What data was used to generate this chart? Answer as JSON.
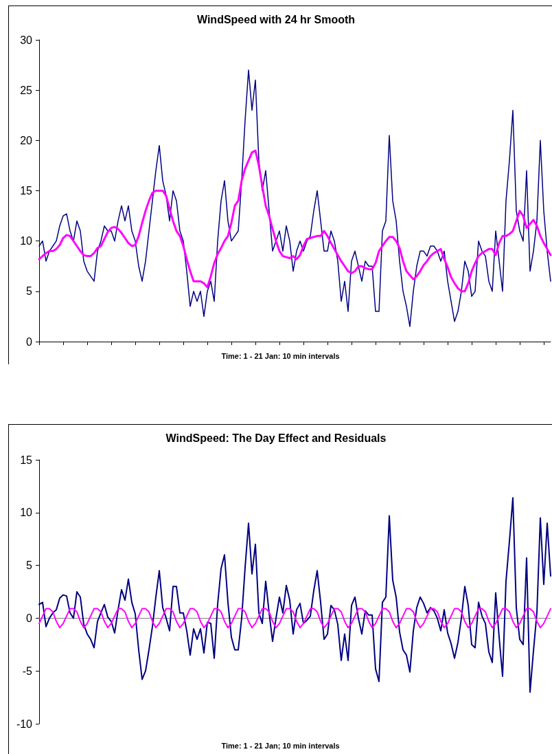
{
  "chart_data": [
    {
      "type": "line",
      "title": "WindSpeed with 24 hr Smooth",
      "xlabel": "Time: 1 - 21 Jan: 10 min intervals",
      "tick_labels": "y",
      "categories": [
        null,
        null,
        null,
        null,
        null,
        null,
        null,
        null,
        null,
        null,
        null,
        null,
        null,
        null,
        null,
        null,
        null,
        null,
        null,
        null,
        null,
        null,
        null,
        null,
        null,
        null,
        null,
        null,
        null,
        null,
        null,
        null,
        null,
        null,
        null,
        null,
        null,
        null,
        null,
        null,
        null,
        null,
        null,
        null,
        null,
        null,
        null,
        null,
        null,
        null,
        null,
        null,
        null,
        null,
        null,
        null,
        null,
        null,
        null,
        null,
        null,
        null,
        null,
        null,
        null,
        null,
        null,
        null,
        null,
        null,
        null,
        null,
        null,
        null,
        null,
        null,
        null,
        null,
        null,
        null,
        null,
        null,
        null,
        null,
        null,
        null,
        null,
        null,
        null,
        null,
        null,
        null,
        null,
        null,
        null,
        null,
        null,
        null,
        null,
        null,
        null,
        null,
        null,
        null,
        null,
        null,
        null,
        null,
        null,
        null,
        null,
        null,
        null,
        null,
        null,
        null,
        null,
        null,
        null,
        null,
        null,
        null,
        null,
        null,
        null,
        null,
        null,
        null,
        null,
        null,
        null,
        null,
        null,
        null,
        null,
        null,
        null,
        null,
        null,
        null,
        null,
        null,
        null,
        null,
        null,
        null,
        null,
        null,
        null,
        null
      ],
      "ylim": [
        0,
        30
      ],
      "yticks": [
        0,
        5,
        10,
        15,
        20,
        25,
        30
      ],
      "series": [
        {
          "color": "#000080",
          "values": [
            9.5,
            10,
            8,
            9,
            9.5,
            10,
            11.5,
            12.5,
            12.7,
            11,
            10,
            12,
            11,
            8,
            7,
            6.5,
            6,
            9,
            10,
            11.5,
            11,
            11,
            10,
            12,
            13.5,
            12,
            13.5,
            11,
            10,
            7.5,
            6,
            8,
            11,
            14,
            17,
            19.5,
            16,
            14.5,
            12,
            15,
            14,
            11,
            10,
            7,
            3.5,
            5,
            4,
            5,
            2.5,
            5,
            6,
            4,
            10,
            14,
            16,
            12,
            10,
            10.5,
            11,
            16,
            22,
            27,
            23,
            26,
            18,
            15,
            17,
            13,
            9,
            10,
            11,
            9,
            11.5,
            10,
            7,
            9,
            10,
            9,
            10,
            10.5,
            13,
            15,
            12,
            9,
            9,
            11,
            10,
            8,
            4,
            6,
            3,
            8,
            9,
            7.5,
            6,
            8,
            7.5,
            7.5,
            3,
            3,
            11,
            12,
            20.5,
            14,
            12,
            8,
            5,
            3.5,
            1.5,
            5,
            7.5,
            9,
            9,
            8.5,
            9.5,
            9.5,
            9,
            8,
            9,
            6,
            4,
            2,
            3,
            5,
            8,
            7,
            4.5,
            5,
            10,
            9,
            8.5,
            6,
            5,
            11,
            8,
            5,
            14,
            18,
            23,
            13,
            11,
            10,
            17,
            7,
            9,
            12,
            20,
            13,
            9,
            6
          ]
        },
        {
          "color": "#ff00ff",
          "values": [
            8.2,
            8.5,
            8.8,
            9.0,
            9.0,
            9.2,
            9.6,
            10.3,
            10.6,
            10.5,
            10.0,
            9.5,
            9.0,
            8.6,
            8.5,
            8.5,
            8.8,
            9.3,
            9.5,
            10.2,
            10.9,
            11.3,
            11.4,
            11.2,
            10.8,
            10.3,
            9.8,
            9.5,
            9.6,
            10.5,
            11.8,
            13.0,
            14.0,
            14.8,
            15.0,
            15.0,
            15.0,
            14.5,
            13.2,
            12.0,
            11.0,
            10.5,
            9.5,
            8.2,
            7.0,
            6.0,
            6.0,
            6.0,
            5.8,
            5.4,
            6.5,
            7.8,
            8.7,
            9.3,
            10.0,
            10.5,
            11.8,
            13.5,
            14.0,
            16.0,
            17.2,
            18.0,
            18.8,
            19.0,
            17.5,
            15.5,
            13.5,
            12.5,
            11.2,
            10.0,
            9.0,
            8.5,
            8.4,
            8.3,
            8.5,
            8.2,
            8.6,
            9.5,
            10.2,
            10.3,
            10.4,
            10.5,
            10.5,
            11.0,
            10.5,
            9.8,
            9.2,
            8.6,
            8.0,
            7.5,
            7.0,
            6.8,
            7.0,
            7.5,
            7.5,
            7.3,
            7.2,
            7.2,
            7.8,
            9.0,
            9.5,
            10.0,
            10.4,
            10.4,
            10.0,
            9.3,
            8.0,
            7.0,
            6.6,
            6.2,
            6.5,
            7.0,
            7.6,
            8.0,
            8.5,
            8.8,
            9.0,
            9.2,
            8.2,
            7.4,
            6.4,
            5.8,
            5.3,
            5.0,
            5.0,
            5.8,
            7.0,
            7.8,
            8.5,
            8.8,
            9.0,
            9.2,
            9.2,
            8.6,
            9.8,
            10.5,
            10.5,
            10.7,
            11.0,
            12.0,
            13.0,
            12.5,
            11.3,
            11.7,
            12.1,
            11.5,
            10.5,
            9.8,
            9.2,
            8.6
          ]
        }
      ]
    },
    {
      "type": "line",
      "title": "WindSpeed: The Day Effect and Residuals",
      "xlabel": "Time: 1 - 21 Jan; 10 min intervals",
      "tick_labels": "y",
      "categories": [
        null,
        null,
        null,
        null,
        null,
        null,
        null,
        null,
        null,
        null,
        null,
        null,
        null,
        null,
        null,
        null,
        null,
        null,
        null,
        null,
        null,
        null,
        null,
        null,
        null,
        null,
        null,
        null,
        null,
        null,
        null,
        null,
        null,
        null,
        null,
        null,
        null,
        null,
        null,
        null,
        null,
        null,
        null,
        null,
        null,
        null,
        null,
        null,
        null,
        null,
        null,
        null,
        null,
        null,
        null,
        null,
        null,
        null,
        null,
        null,
        null,
        null,
        null,
        null,
        null,
        null,
        null,
        null,
        null,
        null,
        null,
        null,
        null,
        null,
        null,
        null,
        null,
        null,
        null,
        null,
        null,
        null,
        null,
        null,
        null,
        null,
        null,
        null,
        null,
        null,
        null,
        null,
        null,
        null,
        null,
        null,
        null,
        null,
        null,
        null,
        null,
        null,
        null,
        null,
        null,
        null,
        null,
        null,
        null,
        null,
        null,
        null,
        null,
        null,
        null,
        null,
        null,
        null,
        null,
        null,
        null,
        null,
        null,
        null,
        null,
        null,
        null,
        null,
        null,
        null,
        null,
        null,
        null,
        null,
        null,
        null,
        null,
        null,
        null,
        null,
        null,
        null,
        null,
        null,
        null,
        null,
        null,
        null,
        null,
        null
      ],
      "ylim": [
        -10,
        15
      ],
      "yticks": [
        -10,
        -5,
        0,
        5,
        10,
        15
      ],
      "series": [
        {
          "color": "#ff00ff",
          "values": [
            -0.5,
            0.2,
            0.9,
            0.9,
            0.6,
            -0.3,
            -0.9,
            -0.5,
            0.2,
            0.9,
            0.9,
            0.6,
            -0.3,
            -0.9,
            -0.5,
            0.2,
            0.9,
            0.9,
            0.6,
            -0.3,
            -0.9,
            -0.5,
            0.2,
            0.9,
            0.9,
            0.6,
            -0.3,
            -0.9,
            -0.5,
            0.2,
            0.9,
            0.9,
            0.6,
            -0.3,
            -0.9,
            -0.5,
            0.2,
            0.9,
            0.9,
            0.6,
            -0.3,
            -0.9,
            -0.5,
            0.2,
            0.9,
            0.9,
            0.6,
            -0.3,
            -0.9,
            -0.5,
            0.2,
            0.9,
            0.9,
            0.6,
            -0.3,
            -0.9,
            -0.5,
            0.2,
            0.9,
            0.9,
            0.6,
            -0.3,
            -0.9,
            -0.5,
            0.2,
            0.9,
            0.9,
            0.6,
            -0.3,
            -0.9,
            -0.5,
            0.2,
            0.9,
            0.9,
            0.6,
            -0.3,
            -0.9,
            -0.5,
            0.2,
            0.9,
            0.9,
            0.6,
            -0.3,
            -0.9,
            -0.5,
            0.2,
            0.9,
            0.9,
            0.6,
            -0.3,
            -0.9,
            -0.5,
            0.2,
            0.9,
            0.9,
            0.6,
            -0.3,
            -0.9,
            -0.5,
            0.2,
            0.9,
            0.9,
            0.6,
            -0.3,
            -0.9,
            -0.5,
            0.2,
            0.9,
            0.9,
            0.6,
            -0.3,
            -0.9,
            -0.5,
            0.2,
            0.9,
            0.9,
            0.6,
            -0.3,
            -0.9,
            -0.5,
            0.2,
            0.9,
            0.9,
            0.6,
            -0.3,
            -0.9,
            -0.5,
            0.2,
            0.9,
            0.9,
            0.6,
            -0.3,
            -0.9,
            -0.5,
            0.2,
            0.9,
            0.9,
            0.6,
            -0.3,
            -0.9,
            -0.5,
            0.2,
            0.9,
            0.9,
            0.6,
            -0.3,
            -0.9,
            -0.5,
            0.2,
            0.9
          ]
        },
        {
          "color": "#000080",
          "values": [
            1.3,
            1.5,
            -0.8,
            0,
            0.5,
            0.8,
            1.9,
            2.2,
            2.1,
            0.5,
            0,
            2.5,
            2,
            -0.6,
            -1.5,
            -2,
            -2.8,
            -0.3,
            0.5,
            1.3,
            0.1,
            -0.3,
            -1.4,
            0.8,
            2.7,
            1.7,
            3.7,
            1.5,
            0.4,
            -3,
            -5.8,
            -5,
            -3,
            -0.8,
            2,
            4.5,
            1,
            0,
            -1.2,
            3,
            3,
            0.5,
            0.5,
            -1.2,
            -3.5,
            -1,
            -2,
            -1,
            -3.3,
            -0.4,
            -0.5,
            -3.8,
            1.3,
            4.7,
            6,
            1.5,
            -1.8,
            -3,
            -3,
            0,
            4.8,
            9,
            4.2,
            7,
            0.5,
            -0.5,
            3.5,
            0.5,
            -2.2,
            0,
            2,
            0.5,
            3.1,
            1.7,
            -1.5,
            0.8,
            1.4,
            -0.5,
            -0.2,
            0.2,
            2.6,
            4.5,
            1.5,
            -2,
            -1.5,
            1.2,
            0.8,
            -0.6,
            -4,
            -1.5,
            -4,
            1.2,
            2,
            0,
            -1.5,
            0.7,
            0.3,
            0.3,
            -4.8,
            -6,
            1.5,
            2,
            9.7,
            3.6,
            2,
            -1.3,
            -3,
            -3.5,
            -5.1,
            -1.2,
            1,
            2,
            1.4,
            0.5,
            1,
            0.7,
            0,
            -1.2,
            0.8,
            -1.4,
            -2.4,
            -3.8,
            -2.3,
            0,
            3,
            1.2,
            -2.5,
            -2.8,
            1.5,
            0.2,
            -0.5,
            -3.2,
            -4.2,
            2.4,
            -1.8,
            -5.5,
            3.5,
            7.3,
            11.4,
            1,
            -2,
            -2.5,
            5.7,
            -7,
            -3.1,
            0.5,
            9.5,
            3.2,
            9,
            4
          ]
        }
      ]
    }
  ]
}
